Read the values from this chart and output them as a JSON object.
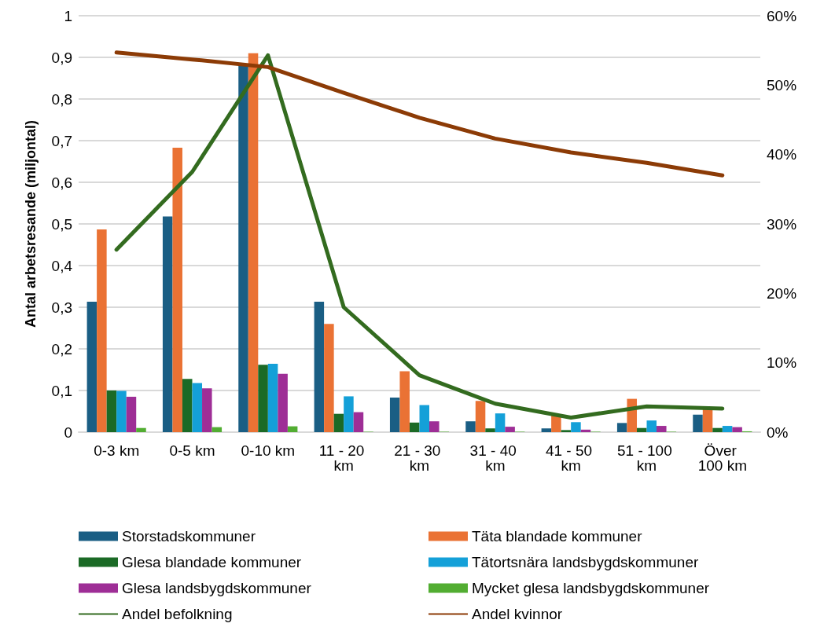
{
  "chart_data": {
    "type": "bar",
    "ylabel": "Antal arbetsresande (miljontal)",
    "categories": [
      "0-3 km",
      "0-5 km",
      "0-10 km",
      "11 - 20 km",
      "21 - 30 km",
      "31 - 40 km",
      "41 - 50 km",
      "51 - 100 km",
      "Över 100 km"
    ],
    "series": [
      {
        "name": "Storstadskommuner",
        "color": "#1a5e84",
        "values": [
          0.313,
          0.518,
          0.88,
          0.313,
          0.083,
          0.026,
          0.009,
          0.022,
          0.042
        ]
      },
      {
        "name": "Täta blandade kommuner",
        "color": "#ea7234",
        "values": [
          0.487,
          0.683,
          0.91,
          0.26,
          0.146,
          0.075,
          0.04,
          0.08,
          0.055
        ]
      },
      {
        "name": "Glesa blandade kommuner",
        "color": "#1b6a26",
        "values": [
          0.1,
          0.128,
          0.162,
          0.044,
          0.023,
          0.009,
          0.005,
          0.01,
          0.01
        ]
      },
      {
        "name": "Tätortsnära landsbygdskommuner",
        "color": "#14a0d8",
        "values": [
          0.099,
          0.118,
          0.164,
          0.086,
          0.065,
          0.045,
          0.024,
          0.028,
          0.015
        ]
      },
      {
        "name": "Glesa landsbygdskommuner",
        "color": "#9e2e96",
        "values": [
          0.085,
          0.105,
          0.14,
          0.048,
          0.026,
          0.013,
          0.006,
          0.015,
          0.012
        ]
      },
      {
        "name": "Mycket glesa landsbygdskommuner",
        "color": "#52ad32",
        "values": [
          0.01,
          0.012,
          0.014,
          0.001,
          0.001,
          0.001,
          0.001,
          0.001,
          0.002
        ]
      },
      {
        "name": "Andel befolkning",
        "type": "line",
        "axis": "y2",
        "color": "#336b1f",
        "values": [
          26.3,
          37.5,
          54.3,
          18.0,
          8.2,
          4.1,
          2.1,
          3.7,
          3.4
        ]
      },
      {
        "name": "Andel kvinnor",
        "type": "line",
        "axis": "y2",
        "color": "#8c3b06",
        "values": [
          54.7,
          53.7,
          52.6,
          48.9,
          45.3,
          42.3,
          40.3,
          38.8,
          37.0
        ]
      }
    ],
    "ylim": [
      0,
      1
    ],
    "yticks": [
      0,
      {
        "value": 0.1,
        "label": "0,1"
      },
      {
        "value": 0.2,
        "label": "0,2"
      },
      {
        "value": 0.3,
        "label": "0,3"
      },
      {
        "value": 0.4,
        "label": "0,4"
      },
      {
        "value": 0.5,
        "label": "0,5"
      },
      {
        "value": 0.6,
        "label": "0,6"
      },
      {
        "value": 0.7,
        "label": "0,7"
      },
      {
        "value": 0.8,
        "label": "0,8"
      },
      {
        "value": 0.9,
        "label": "0,9"
      },
      1
    ],
    "y2lim": [
      0,
      60
    ],
    "y2ticks": [
      {
        "value": 0,
        "label": "0%"
      },
      {
        "value": 10,
        "label": "10%"
      },
      {
        "value": 20,
        "label": "20%"
      },
      {
        "value": 30,
        "label": "30%"
      },
      {
        "value": 40,
        "label": "40%"
      },
      {
        "value": 50,
        "label": "50%"
      },
      {
        "value": 60,
        "label": "60%"
      }
    ],
    "grid": "y",
    "legend": "bottom",
    "marker": "none",
    "line_style": "solid"
  }
}
